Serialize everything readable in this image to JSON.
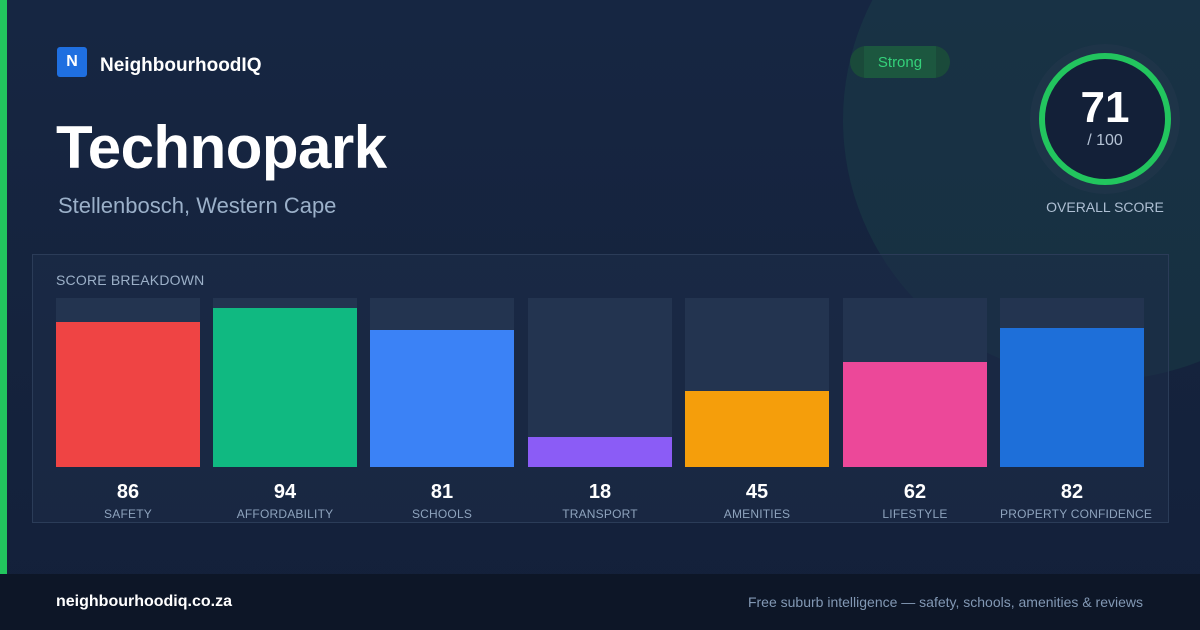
{
  "brand": {
    "logo_letter": "N",
    "name": "NeighbourhoodIQ",
    "logo_color": "#1f6fe0"
  },
  "location": {
    "title": "Technopark",
    "subtitle": "Stellenbosch, Western Cape"
  },
  "rating": {
    "badge": "Strong",
    "score": "71",
    "max": "/ 100",
    "label": "OVERALL SCORE",
    "score_fraction": 0.71,
    "ring_color": "#22c55e"
  },
  "breakdown": {
    "title": "SCORE BREAKDOWN",
    "max_value": 100
  },
  "chart_data": {
    "type": "bar",
    "title": "SCORE BREAKDOWN",
    "categories": [
      "SAFETY",
      "AFFORDABILITY",
      "SCHOOLS",
      "TRANSPORT",
      "AMENITIES",
      "LIFESTYLE",
      "PROPERTY CONFIDENCE"
    ],
    "values": [
      86,
      94,
      81,
      18,
      45,
      62,
      82
    ],
    "colors": [
      "#ef4444",
      "#10b981",
      "#3b82f6",
      "#8b5cf6",
      "#f59e0b",
      "#ec4899",
      "#1e6fd9"
    ],
    "ylim": [
      0,
      100
    ],
    "grid": false,
    "legend": "none"
  },
  "footer": {
    "url": "neighbourhoodiq.co.za",
    "tagline": "Free suburb intelligence — safety, schools, amenities & reviews"
  },
  "colors": {
    "accent": "#22c55e",
    "background": "#162642",
    "footer_bg": "#0d1627"
  }
}
